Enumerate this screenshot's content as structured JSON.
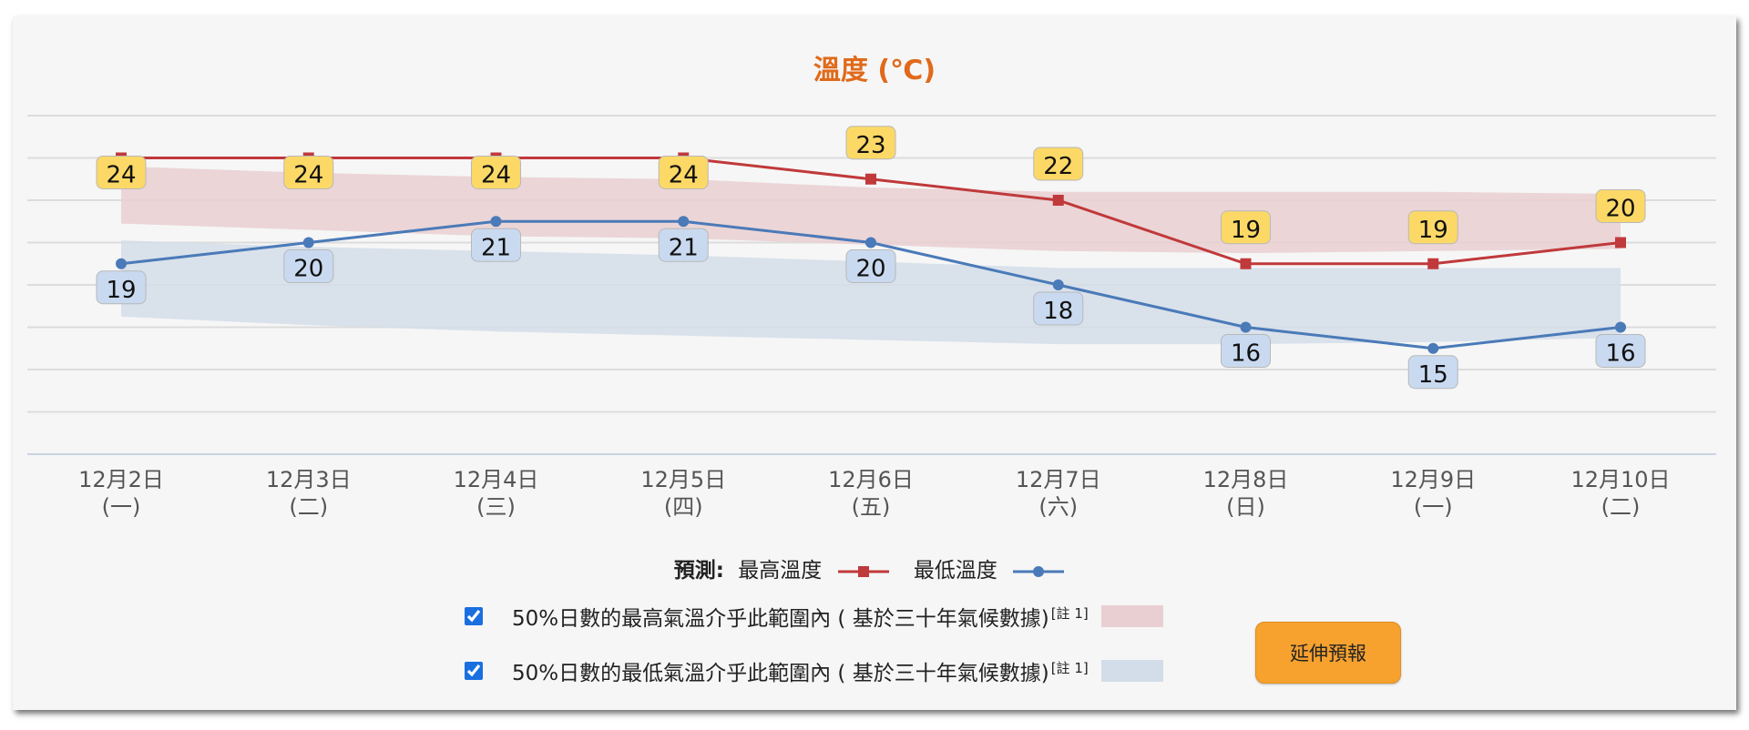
{
  "chart_data": {
    "type": "line",
    "title": "溫度 (℃)",
    "xlabel": "",
    "ylabel": "",
    "ylim": [
      10,
      26
    ],
    "grid": true,
    "categories": [
      {
        "date": "12月2日",
        "weekday": "(一)"
      },
      {
        "date": "12月3日",
        "weekday": "(二)"
      },
      {
        "date": "12月4日",
        "weekday": "(三)"
      },
      {
        "date": "12月5日",
        "weekday": "(四)"
      },
      {
        "date": "12月6日",
        "weekday": "(五)"
      },
      {
        "date": "12月7日",
        "weekday": "(六)"
      },
      {
        "date": "12月8日",
        "weekday": "(日)"
      },
      {
        "date": "12月9日",
        "weekday": "(一)"
      },
      {
        "date": "12月10日",
        "weekday": "(二)"
      }
    ],
    "series": [
      {
        "name": "最高溫度",
        "marker": "square",
        "color": "#c0393b",
        "label_bg": "#fcd966",
        "values": [
          24,
          24,
          24,
          24,
          23,
          22,
          19,
          19,
          20
        ]
      },
      {
        "name": "最低溫度",
        "marker": "circle",
        "color": "#4a7ab8",
        "label_bg": "#c9daf0",
        "values": [
          19,
          20,
          21,
          21,
          20,
          18,
          16,
          15,
          16
        ]
      }
    ],
    "bands": [
      {
        "name": "50%日數的最高氣溫介乎此範圍內",
        "color": "#e9cfd1",
        "upper": [
          23.6,
          23.3,
          23.1,
          23.0,
          22.6,
          22.4,
          22.4,
          22.4,
          22.3
        ],
        "lower": [
          20.9,
          20.6,
          20.3,
          20.2,
          19.9,
          19.6,
          19.5,
          19.6,
          19.7
        ]
      },
      {
        "name": "50%日數的最低氣溫介乎此範圍內",
        "color": "#d3dde9",
        "upper": [
          20.1,
          19.8,
          19.6,
          19.4,
          19.1,
          18.8,
          18.8,
          18.8,
          18.8
        ],
        "lower": [
          16.5,
          16.1,
          15.8,
          15.6,
          15.4,
          15.2,
          15.2,
          15.3,
          15.5
        ]
      }
    ],
    "legend_position": "bottom"
  },
  "legend": {
    "lead": "預測:",
    "max_label": "最高溫度",
    "min_label": "最低溫度"
  },
  "climate": {
    "max_text": "50%日數的最高氣溫介乎此範圍內 ( 基於三十年氣候數據)",
    "min_text": "50%日數的最低氣溫介乎此範圍內 ( 基於三十年氣候數據)",
    "note": "[註 1]",
    "max_checked": true,
    "min_checked": true
  },
  "button": {
    "extend_label": "延伸預報"
  },
  "colors": {
    "title": "#e06a1b",
    "max_line": "#c0393b",
    "min_line": "#4a7ab8",
    "max_band": "#e9cfd1",
    "min_band": "#d3dde9",
    "button": "#f7a12f"
  }
}
